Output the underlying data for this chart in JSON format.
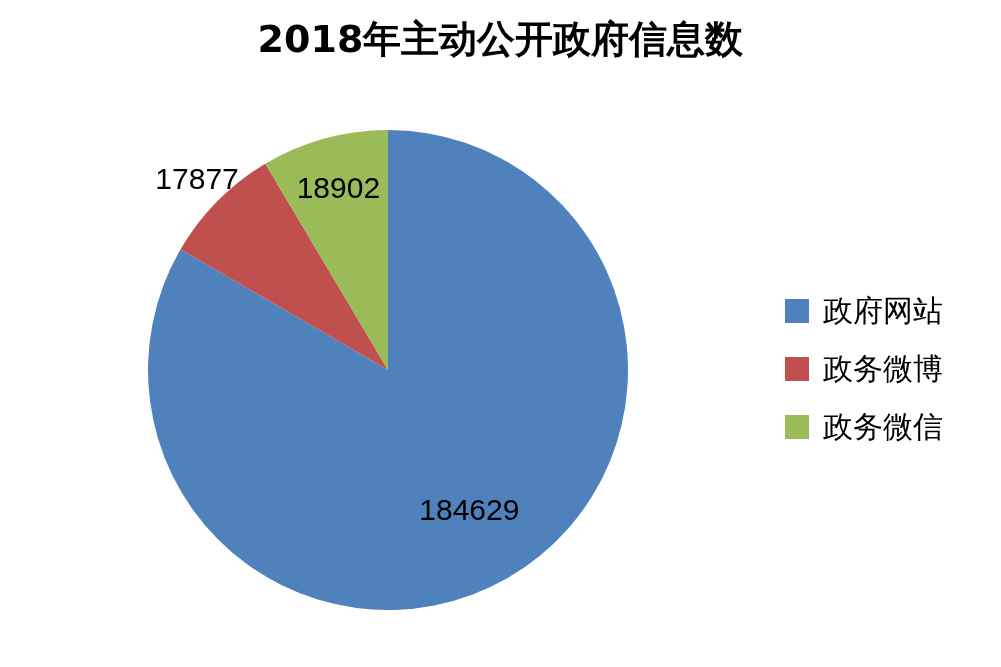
{
  "chart_data": {
    "type": "pie",
    "title": "2018年主动公开政府信息数",
    "categories": [
      "政府网站",
      "政务微博",
      "政务微信"
    ],
    "values": [
      184629,
      17877,
      18902
    ],
    "colors": [
      "#4f81bd",
      "#c0504d",
      "#9bbb59"
    ],
    "data_labels": true,
    "legend": "right"
  }
}
